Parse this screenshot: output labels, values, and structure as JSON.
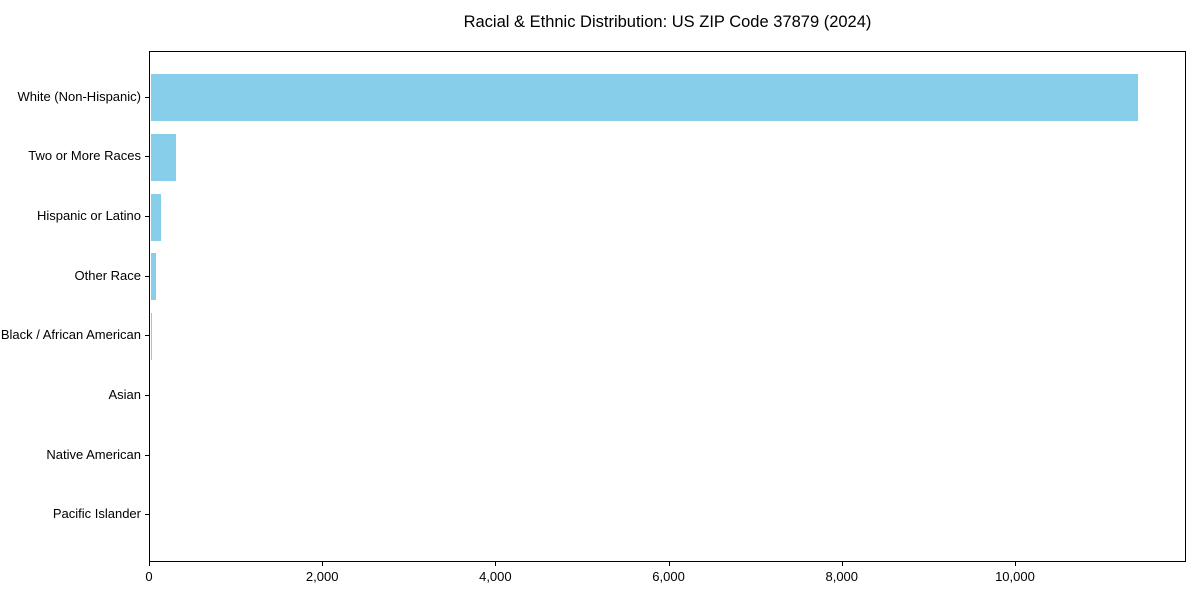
{
  "page": {
    "background": "#ffffff"
  },
  "chart_data": {
    "type": "bar",
    "orientation": "horizontal",
    "title": "Racial & Ethnic Distribution: US ZIP Code 37879 (2024)",
    "categories": [
      "White (Non-Hispanic)",
      "Two or More Races",
      "Hispanic or Latino",
      "Other Race",
      "Black / African American",
      "Asian",
      "Native American",
      "Pacific Islander"
    ],
    "values": [
      11420,
      290,
      115,
      55,
      12,
      0,
      0,
      0
    ],
    "xlabel": "",
    "ylabel": "",
    "xlim": [
      0,
      11975
    ],
    "xticks": [
      0,
      2000,
      4000,
      6000,
      8000,
      10000
    ],
    "xtick_labels": [
      "0",
      "2,000",
      "4,000",
      "6,000",
      "8,000",
      "10,000"
    ],
    "bar_color": "#87CEEB",
    "axis_color": "#000000",
    "grid": false,
    "legend": null
  }
}
